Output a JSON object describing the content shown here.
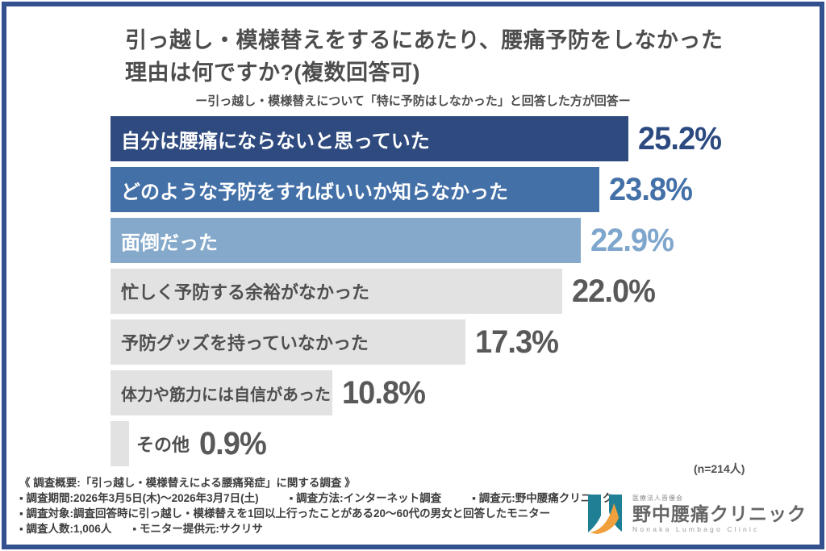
{
  "header": {
    "title_line1": "引っ越し・模様替えをするにあたり、腰痛予防をしなかった",
    "title_line2": "理由は何ですか?(複数回答可)",
    "subtitle": "ー引っ越し・模様替えについて「特に予防はしなかった」と回答した方が回答ー"
  },
  "chart": {
    "rows": [
      {
        "label": "自分は腰痛にならないと思っていた",
        "pct": "25.2%"
      },
      {
        "label": "どのような予防をすればいいか知らなかった",
        "pct": "23.8%"
      },
      {
        "label": "面倒だった",
        "pct": "22.9%"
      },
      {
        "label": "忙しく予防する余裕がなかった",
        "pct": "22.0%"
      },
      {
        "label": "予防グッズを持っていなかった",
        "pct": "17.3%"
      },
      {
        "label": "体力や筋力には自信があった",
        "pct": "10.8%"
      },
      {
        "label": "その他",
        "pct": "0.9%"
      }
    ],
    "n_note": "(n=214人)"
  },
  "chart_data": {
    "type": "bar",
    "orientation": "horizontal",
    "title": "引っ越し・模様替えをするにあたり、腰痛予防をしなかった理由は何ですか?(複数回答可)",
    "subtitle": "ー引っ越し・模様替えについて「特に予防はしなかった」と回答した方が回答ー",
    "categories": [
      "自分は腰痛にならないと思っていた",
      "どのような予防をすればいいか知らなかった",
      "面倒だった",
      "忙しく予防する余裕がなかった",
      "予防グッズを持っていなかった",
      "体力や筋力には自信があった",
      "その他"
    ],
    "values": [
      25.2,
      23.8,
      22.9,
      22.0,
      17.3,
      10.8,
      0.9
    ],
    "unit": "%",
    "xlim": [
      0,
      26
    ],
    "sample_size_label": "(n=214人)",
    "grid": false,
    "legend": false
  },
  "footer": {
    "line1": "《 調査概要:「引っ越し・模様替えによる腰痛発症」に関する調査 》",
    "line2a": "▪ 調査期間:2026年3月5日(木)〜2026年3月7日(土)",
    "line2b": "▪ 調査方法:インターネット調査",
    "line2c": "▪ 調査元:野中腰痛クリニック",
    "line3": "▪ 調査対象:調査回答時に引っ越し・模様替えを1回以上行ったことがある20〜60代の男女と回答したモニター",
    "line4a": "▪ 調査人数:1,006人",
    "line4b": "▪ モニター提供元:サクリサ"
  },
  "logo": {
    "org": "医療法人晋優会",
    "name": "野中腰痛クリニック",
    "name_en": "Nonaka Lumbago Clinic"
  },
  "colors": {
    "frame": "#34518f",
    "title_text": "#4d4d4d",
    "bars": [
      "#2e4a7e",
      "#4470a8",
      "#85a9cb",
      "#e2e2e2",
      "#e2e2e2",
      "#e2e2e2",
      "#e2e2e2"
    ],
    "labels": [
      "#ffffff",
      "#ffffff",
      "#ffffff",
      "#4f4f4f",
      "#4f4f4f",
      "#4f4f4f",
      "#4f4f4f"
    ],
    "pcts": [
      "#2c4a80",
      "#4470a8",
      "#7fa6cd",
      "#595959",
      "#595959",
      "#595959",
      "#595959"
    ],
    "logo_teal": "#1f7f95",
    "logo_orange": "#f0a03c"
  }
}
